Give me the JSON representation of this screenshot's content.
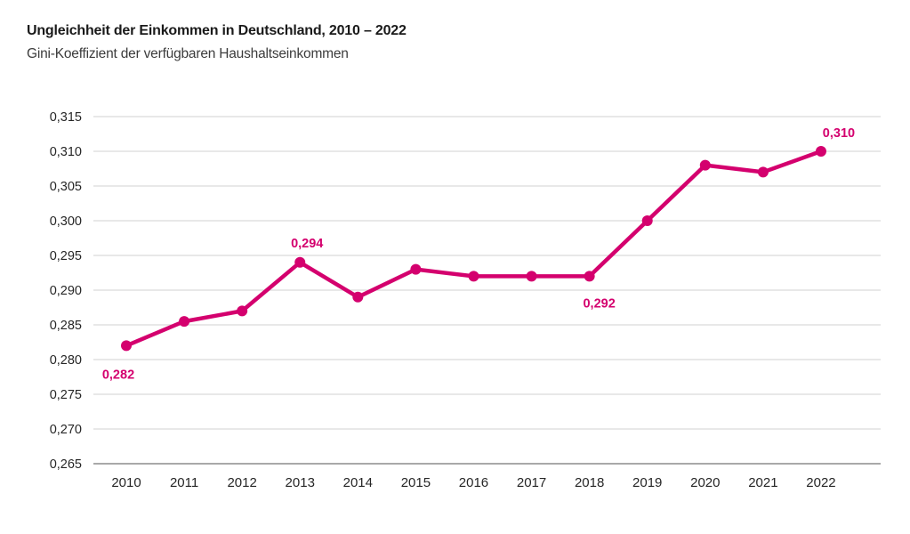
{
  "header": {
    "title": "Ungleichheit der Einkommen in Deutschland, 2010 – 2022",
    "subtitle": "Gini-Koeffizient der verfügbaren Haushaltseinkommen"
  },
  "colors": {
    "line": "#d4006e",
    "grid": "#dadada",
    "axis": "#a9a9a9",
    "tick_text": "#262626",
    "title_text": "#1a1a1a",
    "subtitle_text": "#3c3c3c",
    "background": "#ffffff"
  },
  "chart_data": {
    "type": "line",
    "title": "Ungleichheit der Einkommen in Deutschland, 2010 – 2022",
    "subtitle": "Gini-Koeffizient der verfügbaren Haushaltseinkommen",
    "categories": [
      "2010",
      "2011",
      "2012",
      "2013",
      "2014",
      "2015",
      "2016",
      "2017",
      "2018",
      "2019",
      "2020",
      "2021",
      "2022"
    ],
    "series": [
      {
        "name": "Gini-Koeffizient der verfügbaren Haushaltseinkommen",
        "values": [
          0.282,
          0.2855,
          0.287,
          0.294,
          0.289,
          0.293,
          0.292,
          0.292,
          0.292,
          0.3,
          0.308,
          0.307,
          0.31
        ]
      }
    ],
    "point_labels": [
      {
        "index": 0,
        "text": "0,282",
        "placement": "below-left"
      },
      {
        "index": 3,
        "text": "0,294",
        "placement": "above"
      },
      {
        "index": 8,
        "text": "0,292",
        "placement": "below"
      },
      {
        "index": 12,
        "text": "0,310",
        "placement": "above-right"
      }
    ],
    "y_axis": {
      "ticks": [
        {
          "value": 0.315,
          "label": "0,315"
        },
        {
          "value": 0.31,
          "label": "0,310"
        },
        {
          "value": 0.305,
          "label": "0,305"
        },
        {
          "value": 0.3,
          "label": "0,300"
        },
        {
          "value": 0.295,
          "label": "0,295"
        },
        {
          "value": 0.29,
          "label": "0,290"
        },
        {
          "value": 0.285,
          "label": "0,285"
        },
        {
          "value": 0.28,
          "label": "0,280"
        },
        {
          "value": 0.275,
          "label": "0,275"
        },
        {
          "value": 0.27,
          "label": "0,270"
        },
        {
          "value": 0.265,
          "label": "0,265"
        }
      ]
    },
    "ylim": [
      0.265,
      0.315
    ],
    "xlabel": "",
    "ylabel": "",
    "grid": "horizontal",
    "legend": "none",
    "decimal_separator": ","
  }
}
